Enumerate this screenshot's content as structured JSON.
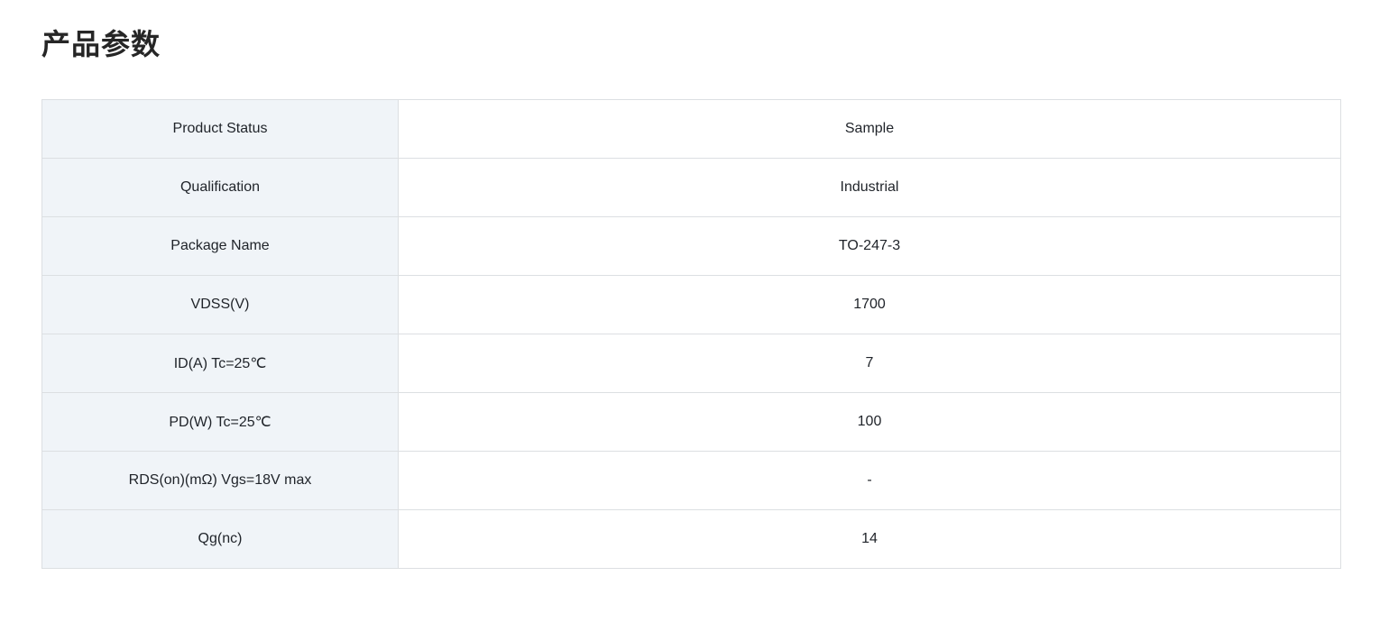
{
  "page": {
    "title": "产品参数"
  },
  "colors": {
    "label_cell_bg": "#f0f4f8",
    "value_cell_bg": "#ffffff",
    "border": "#dcdfe2",
    "text": "#1f2329",
    "title_text": "#262626"
  },
  "table": {
    "rows": [
      {
        "label": "Product Status",
        "value": "Sample"
      },
      {
        "label": "Qualification",
        "value": "Industrial"
      },
      {
        "label": "Package Name",
        "value": "TO-247-3"
      },
      {
        "label": "VDSS(V)",
        "value": "1700"
      },
      {
        "label": "ID(A) Tc=25℃",
        "value": "7"
      },
      {
        "label": "PD(W) Tc=25℃",
        "value": "100"
      },
      {
        "label": "RDS(on)(mΩ) Vgs=18V max",
        "value": "-"
      },
      {
        "label": "Qg(nc)",
        "value": "14"
      }
    ]
  }
}
